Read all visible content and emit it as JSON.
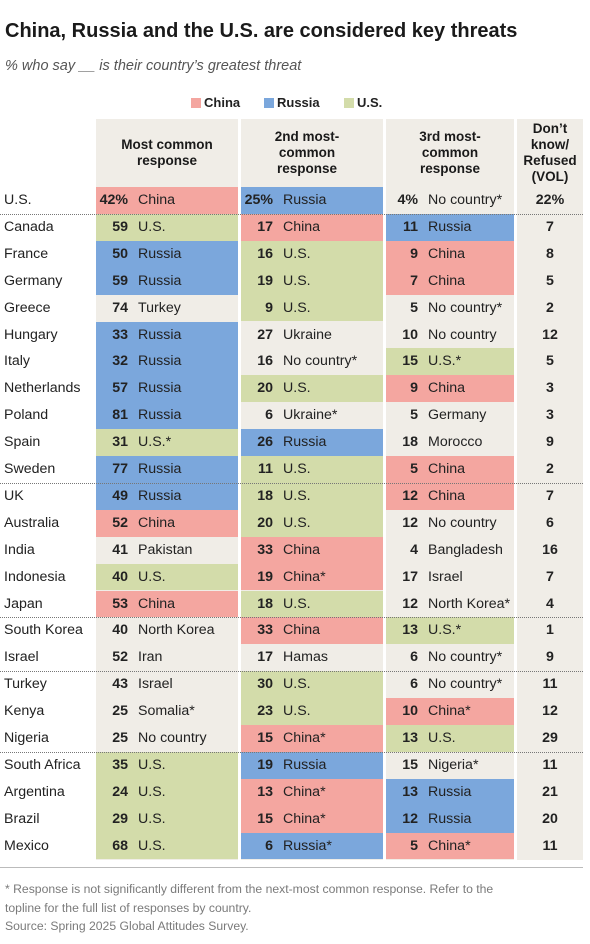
{
  "title": "China, Russia and the U.S. are considered key threats",
  "subtitle": "% who say __ is their country’s greatest threat",
  "legend": [
    {
      "label": "China",
      "color": "#f4a6a0"
    },
    {
      "label": "Russia",
      "color": "#7ba7dc"
    },
    {
      "label": "U.S.",
      "color": "#d3dcaa"
    }
  ],
  "headers": {
    "col1": "Most common response",
    "col2": "2nd most-common response",
    "col3": "3rd most-common response",
    "col4": "Don’t know/ Refused (VOL)"
  },
  "colors": {
    "China": "#f4a6a0",
    "Russia": "#7ba7dc",
    "U.S.": "#d3dcaa",
    "neutral": "#f0ede7"
  },
  "chart_data": {
    "type": "table",
    "title": "China, Russia and the U.S. are considered key threats",
    "columns": [
      "Most common response",
      "2nd most-common response",
      "3rd most-common response",
      "Don’t know/ Refused (VOL)"
    ],
    "group_breaks_after": [
      1,
      11,
      16,
      18,
      21
    ],
    "rows": [
      {
        "country": "U.S.",
        "r1": {
          "pct": "42%",
          "label": "China",
          "color": "China"
        },
        "r2": {
          "pct": "25%",
          "label": "Russia",
          "color": "Russia"
        },
        "r3": {
          "pct": "4%",
          "label": "No country*",
          "color": ""
        },
        "dk": "22%"
      },
      {
        "country": "Canada",
        "r1": {
          "pct": "59",
          "label": "U.S.",
          "color": "U.S."
        },
        "r2": {
          "pct": "17",
          "label": "China",
          "color": "China"
        },
        "r3": {
          "pct": "11",
          "label": "Russia",
          "color": "Russia"
        },
        "dk": "7"
      },
      {
        "country": "France",
        "r1": {
          "pct": "50",
          "label": "Russia",
          "color": "Russia"
        },
        "r2": {
          "pct": "16",
          "label": "U.S.",
          "color": "U.S."
        },
        "r3": {
          "pct": "9",
          "label": "China",
          "color": "China"
        },
        "dk": "8"
      },
      {
        "country": "Germany",
        "r1": {
          "pct": "59",
          "label": "Russia",
          "color": "Russia"
        },
        "r2": {
          "pct": "19",
          "label": "U.S.",
          "color": "U.S."
        },
        "r3": {
          "pct": "7",
          "label": "China",
          "color": "China"
        },
        "dk": "5"
      },
      {
        "country": "Greece",
        "r1": {
          "pct": "74",
          "label": "Turkey",
          "color": ""
        },
        "r2": {
          "pct": "9",
          "label": "U.S.",
          "color": "U.S."
        },
        "r3": {
          "pct": "5",
          "label": "No country*",
          "color": ""
        },
        "dk": "2"
      },
      {
        "country": "Hungary",
        "r1": {
          "pct": "33",
          "label": "Russia",
          "color": "Russia"
        },
        "r2": {
          "pct": "27",
          "label": "Ukraine",
          "color": ""
        },
        "r3": {
          "pct": "10",
          "label": "No country",
          "color": ""
        },
        "dk": "12"
      },
      {
        "country": "Italy",
        "r1": {
          "pct": "32",
          "label": "Russia",
          "color": "Russia"
        },
        "r2": {
          "pct": "16",
          "label": "No country*",
          "color": ""
        },
        "r3": {
          "pct": "15",
          "label": "U.S.*",
          "color": "U.S."
        },
        "dk": "5"
      },
      {
        "country": "Netherlands",
        "r1": {
          "pct": "57",
          "label": "Russia",
          "color": "Russia"
        },
        "r2": {
          "pct": "20",
          "label": "U.S.",
          "color": "U.S."
        },
        "r3": {
          "pct": "9",
          "label": "China",
          "color": "China"
        },
        "dk": "3"
      },
      {
        "country": "Poland",
        "r1": {
          "pct": "81",
          "label": "Russia",
          "color": "Russia"
        },
        "r2": {
          "pct": "6",
          "label": "Ukraine*",
          "color": ""
        },
        "r3": {
          "pct": "5",
          "label": "Germany",
          "color": ""
        },
        "dk": "3"
      },
      {
        "country": "Spain",
        "r1": {
          "pct": "31",
          "label": "U.S.*",
          "color": "U.S."
        },
        "r2": {
          "pct": "26",
          "label": "Russia",
          "color": "Russia"
        },
        "r3": {
          "pct": "18",
          "label": "Morocco",
          "color": ""
        },
        "dk": "9"
      },
      {
        "country": "Sweden",
        "r1": {
          "pct": "77",
          "label": "Russia",
          "color": "Russia"
        },
        "r2": {
          "pct": "11",
          "label": "U.S.",
          "color": "U.S."
        },
        "r3": {
          "pct": "5",
          "label": "China",
          "color": "China"
        },
        "dk": "2"
      },
      {
        "country": "UK",
        "r1": {
          "pct": "49",
          "label": "Russia",
          "color": "Russia"
        },
        "r2": {
          "pct": "18",
          "label": "U.S.",
          "color": "U.S."
        },
        "r3": {
          "pct": "12",
          "label": "China",
          "color": "China"
        },
        "dk": "7"
      },
      {
        "country": "Australia",
        "r1": {
          "pct": "52",
          "label": "China",
          "color": "China"
        },
        "r2": {
          "pct": "20",
          "label": "U.S.",
          "color": "U.S."
        },
        "r3": {
          "pct": "12",
          "label": "No country",
          "color": ""
        },
        "dk": "6"
      },
      {
        "country": "India",
        "r1": {
          "pct": "41",
          "label": "Pakistan",
          "color": ""
        },
        "r2": {
          "pct": "33",
          "label": "China",
          "color": "China"
        },
        "r3": {
          "pct": "4",
          "label": "Bangladesh",
          "color": ""
        },
        "dk": "16"
      },
      {
        "country": "Indonesia",
        "r1": {
          "pct": "40",
          "label": "U.S.",
          "color": "U.S."
        },
        "r2": {
          "pct": "19",
          "label": "China*",
          "color": "China"
        },
        "r3": {
          "pct": "17",
          "label": "Israel",
          "color": ""
        },
        "dk": "7"
      },
      {
        "country": "Japan",
        "r1": {
          "pct": "53",
          "label": "China",
          "color": "China"
        },
        "r2": {
          "pct": "18",
          "label": "U.S.",
          "color": "U.S."
        },
        "r3": {
          "pct": "12",
          "label": "North Korea*",
          "color": ""
        },
        "dk": "4"
      },
      {
        "country": "South Korea",
        "r1": {
          "pct": "40",
          "label": "North Korea",
          "color": ""
        },
        "r2": {
          "pct": "33",
          "label": "China",
          "color": "China"
        },
        "r3": {
          "pct": "13",
          "label": "U.S.*",
          "color": "U.S."
        },
        "dk": "1"
      },
      {
        "country": "Israel",
        "r1": {
          "pct": "52",
          "label": "Iran",
          "color": ""
        },
        "r2": {
          "pct": "17",
          "label": "Hamas",
          "color": ""
        },
        "r3": {
          "pct": "6",
          "label": "No country*",
          "color": ""
        },
        "dk": "9"
      },
      {
        "country": "Turkey",
        "r1": {
          "pct": "43",
          "label": "Israel",
          "color": ""
        },
        "r2": {
          "pct": "30",
          "label": "U.S.",
          "color": "U.S."
        },
        "r3": {
          "pct": "6",
          "label": "No country*",
          "color": ""
        },
        "dk": "11"
      },
      {
        "country": "Kenya",
        "r1": {
          "pct": "25",
          "label": "Somalia*",
          "color": ""
        },
        "r2": {
          "pct": "23",
          "label": "U.S.",
          "color": "U.S."
        },
        "r3": {
          "pct": "10",
          "label": "China*",
          "color": "China"
        },
        "dk": "12"
      },
      {
        "country": "Nigeria",
        "r1": {
          "pct": "25",
          "label": "No country",
          "color": ""
        },
        "r2": {
          "pct": "15",
          "label": "China*",
          "color": "China"
        },
        "r3": {
          "pct": "13",
          "label": "U.S.",
          "color": "U.S."
        },
        "dk": "29"
      },
      {
        "country": "South Africa",
        "r1": {
          "pct": "35",
          "label": "U.S.",
          "color": "U.S."
        },
        "r2": {
          "pct": "19",
          "label": "Russia",
          "color": "Russia"
        },
        "r3": {
          "pct": "15",
          "label": "Nigeria*",
          "color": ""
        },
        "dk": "11"
      },
      {
        "country": "Argentina",
        "r1": {
          "pct": "24",
          "label": "U.S.",
          "color": "U.S."
        },
        "r2": {
          "pct": "13",
          "label": "China*",
          "color": "China"
        },
        "r3": {
          "pct": "13",
          "label": "Russia",
          "color": "Russia"
        },
        "dk": "21"
      },
      {
        "country": "Brazil",
        "r1": {
          "pct": "29",
          "label": "U.S.",
          "color": "U.S."
        },
        "r2": {
          "pct": "15",
          "label": "China*",
          "color": "China"
        },
        "r3": {
          "pct": "12",
          "label": "Russia",
          "color": "Russia"
        },
        "dk": "20"
      },
      {
        "country": "Mexico",
        "r1": {
          "pct": "68",
          "label": "U.S.",
          "color": "U.S."
        },
        "r2": {
          "pct": "6",
          "label": "Russia*",
          "color": "Russia"
        },
        "r3": {
          "pct": "5",
          "label": "China*",
          "color": "China"
        },
        "dk": "11"
      }
    ]
  },
  "footnotes": {
    "line1": "* Response is not significantly different from the next-most common response. Refer to the",
    "line2": "topline for the full list of responses by country.",
    "line3": "Source: Spring 2025 Global Attitudes Survey."
  }
}
